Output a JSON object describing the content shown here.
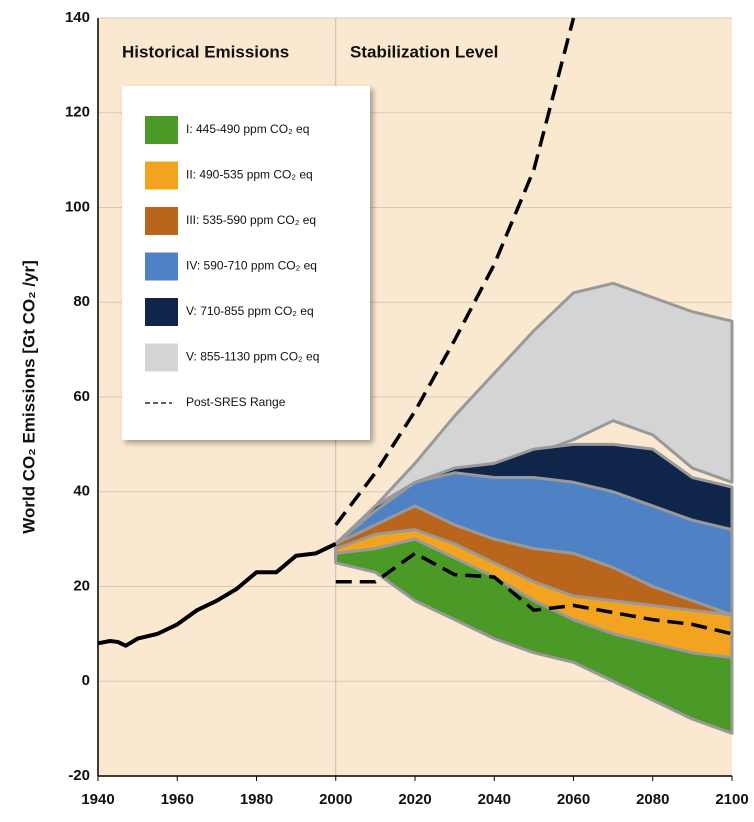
{
  "chart_data": {
    "type": "area",
    "ylabel": "World CO₂ Emissions [Gt CO₂ /yr]",
    "annotations": [
      "Historical Emissions",
      "Stabilization Level"
    ],
    "xlim": [
      1940,
      2100
    ],
    "xticks": [
      1940,
      1960,
      1980,
      2000,
      2020,
      2040,
      2060,
      2080,
      2100
    ],
    "ylim": [
      -20,
      140
    ],
    "yticks": [
      -20,
      0,
      20,
      40,
      60,
      80,
      100,
      120,
      140
    ],
    "grid": true,
    "legend": "upper left",
    "historical": {
      "color": "#000000",
      "x": [
        1940,
        1943,
        1945,
        1947,
        1950,
        1955,
        1960,
        1965,
        1970,
        1975,
        1980,
        1985,
        1990,
        1995,
        2000
      ],
      "values": [
        8,
        8.5,
        8.3,
        7.5,
        9,
        10,
        12,
        15,
        17,
        19.5,
        23,
        23,
        26.5,
        27,
        29
      ]
    },
    "series": [
      {
        "name": "V: 855-1130 ppm CO₂   eq",
        "color": "#d3d5d5",
        "x": [
          2000,
          2010,
          2020,
          2030,
          2040,
          2050,
          2060,
          2070,
          2080,
          2090,
          2100
        ],
        "values": [
          29,
          37,
          46,
          56,
          65,
          74,
          82,
          84,
          81,
          78,
          76
        ],
        "lower": [
          29,
          33,
          38,
          42,
          44,
          48,
          51,
          55,
          52,
          45,
          42
        ]
      },
      {
        "name": "V: 710-855 ppm CO₂ eq",
        "color": "#0f2549",
        "x": [
          2000,
          2010,
          2020,
          2030,
          2040,
          2050,
          2060,
          2070,
          2080,
          2090,
          2100
        ],
        "values": [
          29,
          37,
          42,
          45,
          46,
          49,
          50,
          50,
          49,
          43,
          41
        ],
        "lower": [
          29,
          32,
          36,
          38,
          39,
          40,
          40,
          38,
          36,
          34,
          32
        ]
      },
      {
        "name": "IV: 590-710 ppm CO₂ eq",
        "color": "#4f82c4",
        "x": [
          2000,
          2010,
          2020,
          2030,
          2040,
          2050,
          2060,
          2070,
          2080,
          2090,
          2100
        ],
        "values": [
          29,
          36,
          42,
          44,
          43,
          43,
          42,
          40,
          37,
          34,
          32
        ],
        "lower": [
          26,
          27,
          27,
          26,
          25,
          22,
          17,
          15,
          14,
          13,
          13
        ]
      },
      {
        "name": "III: 535-590 ppm CO₂ eq",
        "color": "#b9661c",
        "x": [
          2000,
          2010,
          2020,
          2030,
          2040,
          2050,
          2060,
          2070,
          2080,
          2090,
          2100
        ],
        "values": [
          29,
          33,
          37,
          33,
          30,
          28,
          27,
          24,
          20,
          17,
          14
        ],
        "lower": [
          26,
          25,
          22,
          20,
          17,
          15,
          14,
          13,
          12,
          11,
          11
        ]
      },
      {
        "name": "II: 490-535 ppm CO₂ eq",
        "color": "#f2a320",
        "x": [
          2000,
          2010,
          2020,
          2030,
          2040,
          2050,
          2060,
          2070,
          2080,
          2090,
          2100
        ],
        "values": [
          28,
          31,
          32,
          29,
          25,
          21,
          18,
          17,
          16,
          15,
          14
        ],
        "lower": [
          25,
          24,
          20,
          16,
          14,
          12,
          10,
          6,
          4,
          3,
          3
        ]
      },
      {
        "name": "I: 445-490 ppm CO₂ eq",
        "color": "#4b9a27",
        "x": [
          2000,
          2010,
          2020,
          2030,
          2040,
          2050,
          2060,
          2070,
          2080,
          2090,
          2100
        ],
        "values": [
          27,
          28,
          30,
          26,
          22,
          17,
          13,
          10,
          8,
          6,
          5
        ],
        "lower": [
          25,
          23,
          17,
          13,
          9,
          6,
          4,
          0,
          -4,
          -8,
          -11
        ]
      },
      {
        "name": "Post-SRES Range",
        "color": "#000000",
        "dashed": true,
        "x": [
          2000,
          2010,
          2020,
          2030,
          2040,
          2050,
          2060,
          2070,
          2080,
          2090,
          2100
        ],
        "values": [
          33,
          44,
          57,
          72,
          88,
          108,
          140,
          null,
          null,
          null,
          null
        ],
        "lower": [
          21,
          21,
          27,
          22.5,
          22,
          15,
          16,
          14.5,
          13,
          12,
          10
        ]
      }
    ]
  }
}
